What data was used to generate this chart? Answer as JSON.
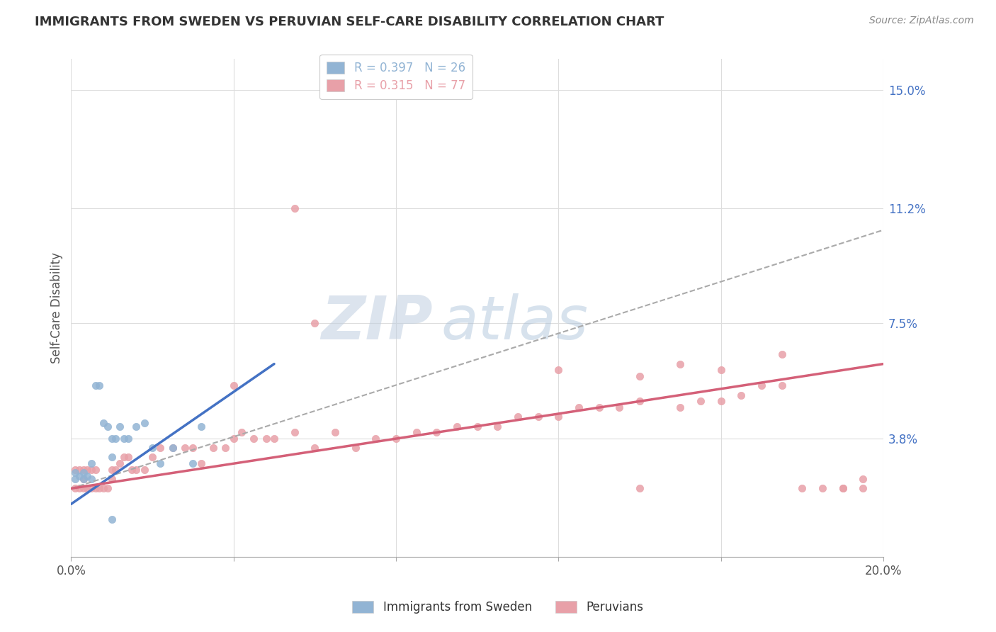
{
  "title": "IMMIGRANTS FROM SWEDEN VS PERUVIAN SELF-CARE DISABILITY CORRELATION CHART",
  "source": "Source: ZipAtlas.com",
  "ylabel": "Self-Care Disability",
  "xlim": [
    0.0,
    0.2
  ],
  "ylim": [
    0.0,
    0.16
  ],
  "x_ticks": [
    0.0,
    0.04,
    0.08,
    0.12,
    0.16,
    0.2
  ],
  "x_tick_labels": [
    "0.0%",
    "",
    "",
    "",
    "",
    "20.0%"
  ],
  "y_tick_labels_right": [
    "",
    "3.8%",
    "7.5%",
    "11.2%",
    "15.0%"
  ],
  "y_ticks_right": [
    0.0,
    0.038,
    0.075,
    0.112,
    0.15
  ],
  "sweden_R": 0.397,
  "sweden_N": 26,
  "peru_R": 0.315,
  "peru_N": 77,
  "sweden_color": "#92b4d4",
  "peru_color": "#e8a0a8",
  "sweden_line_color": "#4472c4",
  "peru_line_color": "#d46078",
  "trend_line_color": "#aaaaaa",
  "background_color": "#ffffff",
  "grid_color": "#dddddd",
  "watermark_color": "#c8d8e8",
  "sweden_line_x": [
    0.0,
    0.05
  ],
  "sweden_line_y": [
    0.017,
    0.062
  ],
  "peru_line_x": [
    0.0,
    0.2
  ],
  "peru_line_y": [
    0.022,
    0.062
  ],
  "trend_line_x": [
    0.0,
    0.2
  ],
  "trend_line_y": [
    0.022,
    0.105
  ],
  "sweden_scatter_x": [
    0.001,
    0.001,
    0.002,
    0.003,
    0.003,
    0.004,
    0.005,
    0.005,
    0.006,
    0.007,
    0.008,
    0.009,
    0.01,
    0.01,
    0.011,
    0.012,
    0.013,
    0.014,
    0.016,
    0.018,
    0.02,
    0.022,
    0.025,
    0.03,
    0.032,
    0.01
  ],
  "sweden_scatter_y": [
    0.025,
    0.027,
    0.026,
    0.025,
    0.027,
    0.026,
    0.025,
    0.03,
    0.055,
    0.055,
    0.043,
    0.042,
    0.032,
    0.038,
    0.038,
    0.042,
    0.038,
    0.038,
    0.042,
    0.043,
    0.035,
    0.03,
    0.035,
    0.03,
    0.042,
    0.012
  ],
  "peru_scatter_x": [
    0.001,
    0.001,
    0.002,
    0.002,
    0.003,
    0.003,
    0.003,
    0.004,
    0.004,
    0.005,
    0.005,
    0.006,
    0.006,
    0.007,
    0.008,
    0.009,
    0.01,
    0.01,
    0.011,
    0.012,
    0.013,
    0.014,
    0.015,
    0.016,
    0.018,
    0.02,
    0.022,
    0.025,
    0.028,
    0.03,
    0.032,
    0.035,
    0.038,
    0.04,
    0.042,
    0.045,
    0.048,
    0.05,
    0.055,
    0.06,
    0.065,
    0.07,
    0.075,
    0.08,
    0.085,
    0.09,
    0.095,
    0.1,
    0.105,
    0.11,
    0.115,
    0.12,
    0.125,
    0.13,
    0.135,
    0.14,
    0.15,
    0.155,
    0.16,
    0.165,
    0.17,
    0.175,
    0.18,
    0.185,
    0.19,
    0.195,
    0.04,
    0.055,
    0.06,
    0.12,
    0.14,
    0.15,
    0.16,
    0.14,
    0.175,
    0.19,
    0.195
  ],
  "peru_scatter_y": [
    0.022,
    0.028,
    0.022,
    0.028,
    0.022,
    0.025,
    0.028,
    0.022,
    0.028,
    0.022,
    0.028,
    0.022,
    0.028,
    0.022,
    0.022,
    0.022,
    0.025,
    0.028,
    0.028,
    0.03,
    0.032,
    0.032,
    0.028,
    0.028,
    0.028,
    0.032,
    0.035,
    0.035,
    0.035,
    0.035,
    0.03,
    0.035,
    0.035,
    0.038,
    0.04,
    0.038,
    0.038,
    0.038,
    0.04,
    0.035,
    0.04,
    0.035,
    0.038,
    0.038,
    0.04,
    0.04,
    0.042,
    0.042,
    0.042,
    0.045,
    0.045,
    0.045,
    0.048,
    0.048,
    0.048,
    0.05,
    0.048,
    0.05,
    0.05,
    0.052,
    0.055,
    0.055,
    0.022,
    0.022,
    0.022,
    0.022,
    0.055,
    0.112,
    0.075,
    0.06,
    0.058,
    0.062,
    0.06,
    0.022,
    0.065,
    0.022,
    0.025
  ]
}
